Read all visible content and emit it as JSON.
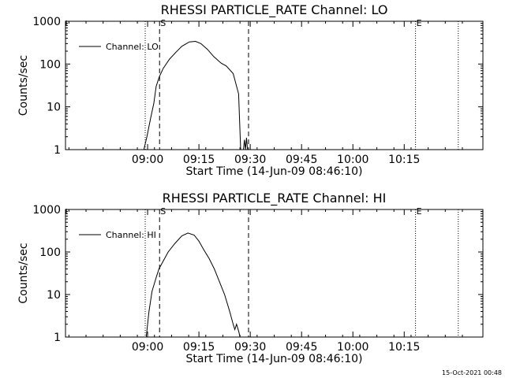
{
  "footer": {
    "timestamp": "15-Oct-2021 00:48"
  },
  "chart_data": [
    {
      "type": "line",
      "title": "RHESSI PARTICLE_RATE Channel: LO",
      "xlabel": "Start Time (14-Jun-09 08:46:10)",
      "ylabel": "Counts/sec",
      "yscale": "log",
      "xlim_min": [
        -10,
        112
      ],
      "ylim": [
        1,
        1000
      ],
      "x_ticks_min": [
        14,
        29,
        44,
        59,
        74,
        89
      ],
      "x_tick_labels": [
        "09:00",
        "09:15",
        "09:30",
        "09:45",
        "10:00",
        "10:15"
      ],
      "y_ticks": [
        1,
        10,
        100,
        1000
      ],
      "y_tick_labels": [
        "1",
        "10",
        "100",
        "1000"
      ],
      "legend": "Channel: LO",
      "legend_position": "top-left",
      "markers": [
        {
          "x_min": 13.3,
          "style": "dotted",
          "label": ""
        },
        {
          "x_min": 17.5,
          "style": "dashed",
          "label": "S"
        },
        {
          "x_min": 43.5,
          "style": "dashed",
          "label": ""
        },
        {
          "x_min": 92.3,
          "style": "dotted",
          "label": "E"
        },
        {
          "x_min": 104.8,
          "style": "dotted",
          "label": ""
        }
      ],
      "series": [
        {
          "name": "Channel: LO",
          "x_min": [
            12.9,
            13.8,
            14.8,
            15.8,
            16.5,
            17.4,
            18.6,
            20.4,
            22.3,
            24.0,
            26.2,
            28.0,
            29.6,
            31.5,
            33.3,
            35.5,
            37.0,
            39.0,
            40.6,
            41.2
          ],
          "y": [
            1.0,
            2.0,
            5.0,
            12.0,
            30.0,
            50.0,
            80.0,
            130.0,
            190.0,
            260.0,
            330.0,
            340.0,
            300.0,
            220.0,
            150.0,
            105.0,
            90.0,
            60.0,
            20.0,
            1.0
          ],
          "burst": {
            "x_min": [
              42.0,
              42.3,
              42.6,
              42.9,
              43.2
            ],
            "y": [
              1.0,
              1.7,
              1.0,
              1.9,
              1.0
            ]
          }
        }
      ]
    },
    {
      "type": "line",
      "title": "RHESSI PARTICLE_RATE Channel: HI",
      "xlabel": "Start Time (14-Jun-09 08:46:10)",
      "ylabel": "Counts/sec",
      "yscale": "log",
      "xlim_min": [
        -10,
        112
      ],
      "ylim": [
        1,
        1000
      ],
      "x_ticks_min": [
        14,
        29,
        44,
        59,
        74,
        89
      ],
      "x_tick_labels": [
        "09:00",
        "09:15",
        "09:30",
        "09:45",
        "10:00",
        "10:15"
      ],
      "y_ticks": [
        1,
        10,
        100,
        1000
      ],
      "y_tick_labels": [
        "1",
        "10",
        "100",
        "1000"
      ],
      "legend": "Channel: HI",
      "legend_position": "top-left",
      "markers": [
        {
          "x_min": 13.3,
          "style": "dotted",
          "label": ""
        },
        {
          "x_min": 17.5,
          "style": "dashed",
          "label": "S"
        },
        {
          "x_min": 43.5,
          "style": "dashed",
          "label": ""
        },
        {
          "x_min": 92.3,
          "style": "dotted",
          "label": "E"
        },
        {
          "x_min": 104.8,
          "style": "dotted",
          "label": ""
        }
      ],
      "series": [
        {
          "name": "Channel: HI",
          "x_min": [
            13.6,
            14.4,
            15.3,
            16.5,
            17.3,
            18.5,
            20.0,
            22.0,
            24.0,
            25.8,
            27.6,
            29.0,
            30.5,
            32.0,
            33.5,
            35.0,
            36.5,
            38.0,
            39.0,
            39.5,
            40.0,
            40.7,
            41.0
          ],
          "y": [
            1.0,
            4.0,
            12.0,
            25.0,
            40.0,
            60.0,
            100.0,
            160.0,
            240.0,
            280.0,
            250.0,
            180.0,
            110.0,
            70.0,
            40.0,
            20.0,
            10.0,
            4.0,
            2.0,
            1.5,
            2.0,
            1.3,
            1.0
          ]
        }
      ]
    }
  ]
}
